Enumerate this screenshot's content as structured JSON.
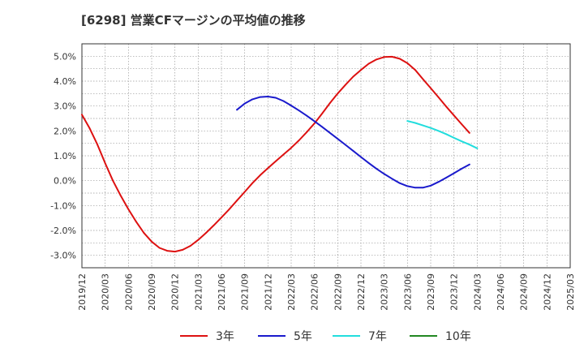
{
  "chart_data": {
    "type": "line",
    "title": "[6298]  営業CFマージンの平均値の推移",
    "ylim": [
      -3.5,
      5.5
    ],
    "y_ticks": [
      "5.0%",
      "4.0%",
      "3.0%",
      "2.0%",
      "1.0%",
      "0.0%",
      "-1.0%",
      "-2.0%",
      "-3.0%"
    ],
    "y_tick_values": [
      5,
      4,
      3,
      2,
      1,
      0,
      -1,
      -2,
      -3
    ],
    "x_ticks": [
      "2019/12",
      "2020/03",
      "2020/06",
      "2020/09",
      "2020/12",
      "2021/03",
      "2021/06",
      "2021/09",
      "2021/12",
      "2022/03",
      "2022/06",
      "2022/09",
      "2022/12",
      "2023/03",
      "2023/06",
      "2023/09",
      "2023/12",
      "2024/03",
      "2024/06",
      "2024/09",
      "2024/12",
      "2025/03"
    ],
    "grid": true,
    "legend_position": "bottom",
    "series": [
      {
        "name": "3年",
        "color": "#dd1111",
        "values": [
          [
            "2019/12",
            2.65
          ],
          [
            "2020/01",
            2.1
          ],
          [
            "2020/02",
            1.45
          ],
          [
            "2020/03",
            0.7
          ],
          [
            "2020/04",
            0.0
          ],
          [
            "2020/05",
            -0.6
          ],
          [
            "2020/06",
            -1.15
          ],
          [
            "2020/07",
            -1.65
          ],
          [
            "2020/08",
            -2.1
          ],
          [
            "2020/09",
            -2.45
          ],
          [
            "2020/10",
            -2.7
          ],
          [
            "2020/11",
            -2.82
          ],
          [
            "2020/12",
            -2.85
          ],
          [
            "2021/01",
            -2.78
          ],
          [
            "2021/02",
            -2.62
          ],
          [
            "2021/03",
            -2.38
          ],
          [
            "2021/04",
            -2.1
          ],
          [
            "2021/05",
            -1.8
          ],
          [
            "2021/06",
            -1.48
          ],
          [
            "2021/07",
            -1.15
          ],
          [
            "2021/08",
            -0.8
          ],
          [
            "2021/09",
            -0.45
          ],
          [
            "2021/10",
            -0.1
          ],
          [
            "2021/11",
            0.22
          ],
          [
            "2021/12",
            0.5
          ],
          [
            "2022/01",
            0.78
          ],
          [
            "2022/02",
            1.05
          ],
          [
            "2022/03",
            1.32
          ],
          [
            "2022/04",
            1.62
          ],
          [
            "2022/05",
            1.95
          ],
          [
            "2022/06",
            2.3
          ],
          [
            "2022/07",
            2.7
          ],
          [
            "2022/08",
            3.12
          ],
          [
            "2022/09",
            3.5
          ],
          [
            "2022/10",
            3.85
          ],
          [
            "2022/11",
            4.18
          ],
          [
            "2022/12",
            4.45
          ],
          [
            "2023/01",
            4.7
          ],
          [
            "2023/02",
            4.87
          ],
          [
            "2023/03",
            4.97
          ],
          [
            "2023/04",
            4.98
          ],
          [
            "2023/05",
            4.9
          ],
          [
            "2023/06",
            4.72
          ],
          [
            "2023/07",
            4.45
          ],
          [
            "2023/08",
            4.08
          ],
          [
            "2023/09",
            3.72
          ],
          [
            "2023/10",
            3.35
          ],
          [
            "2023/11",
            2.98
          ],
          [
            "2023/12",
            2.62
          ],
          [
            "2024/01",
            2.27
          ],
          [
            "2024/02",
            1.92
          ]
        ]
      },
      {
        "name": "5年",
        "color": "#1a1acc",
        "values": [
          [
            "2021/08",
            2.85
          ],
          [
            "2021/09",
            3.1
          ],
          [
            "2021/10",
            3.27
          ],
          [
            "2021/11",
            3.36
          ],
          [
            "2021/12",
            3.38
          ],
          [
            "2022/01",
            3.33
          ],
          [
            "2022/02",
            3.2
          ],
          [
            "2022/03",
            3.02
          ],
          [
            "2022/04",
            2.82
          ],
          [
            "2022/05",
            2.61
          ],
          [
            "2022/06",
            2.39
          ],
          [
            "2022/07",
            2.16
          ],
          [
            "2022/08",
            1.92
          ],
          [
            "2022/09",
            1.68
          ],
          [
            "2022/10",
            1.44
          ],
          [
            "2022/11",
            1.2
          ],
          [
            "2022/12",
            0.95
          ],
          [
            "2023/01",
            0.71
          ],
          [
            "2023/02",
            0.48
          ],
          [
            "2023/03",
            0.27
          ],
          [
            "2023/04",
            0.08
          ],
          [
            "2023/05",
            -0.1
          ],
          [
            "2023/06",
            -0.22
          ],
          [
            "2023/07",
            -0.28
          ],
          [
            "2023/08",
            -0.28
          ],
          [
            "2023/09",
            -0.2
          ],
          [
            "2023/10",
            -0.05
          ],
          [
            "2023/11",
            0.12
          ],
          [
            "2023/12",
            0.3
          ],
          [
            "2024/01",
            0.48
          ],
          [
            "2024/02",
            0.65
          ]
        ]
      },
      {
        "name": "7年",
        "color": "#22dddd",
        "values": [
          [
            "2023/06",
            2.4
          ],
          [
            "2023/07",
            2.32
          ],
          [
            "2023/08",
            2.22
          ],
          [
            "2023/09",
            2.12
          ],
          [
            "2023/10",
            2.0
          ],
          [
            "2023/11",
            1.87
          ],
          [
            "2023/12",
            1.72
          ],
          [
            "2024/01",
            1.58
          ],
          [
            "2024/02",
            1.45
          ],
          [
            "2024/03",
            1.3
          ]
        ]
      },
      {
        "name": "10年",
        "color": "#228822",
        "values": []
      }
    ]
  }
}
